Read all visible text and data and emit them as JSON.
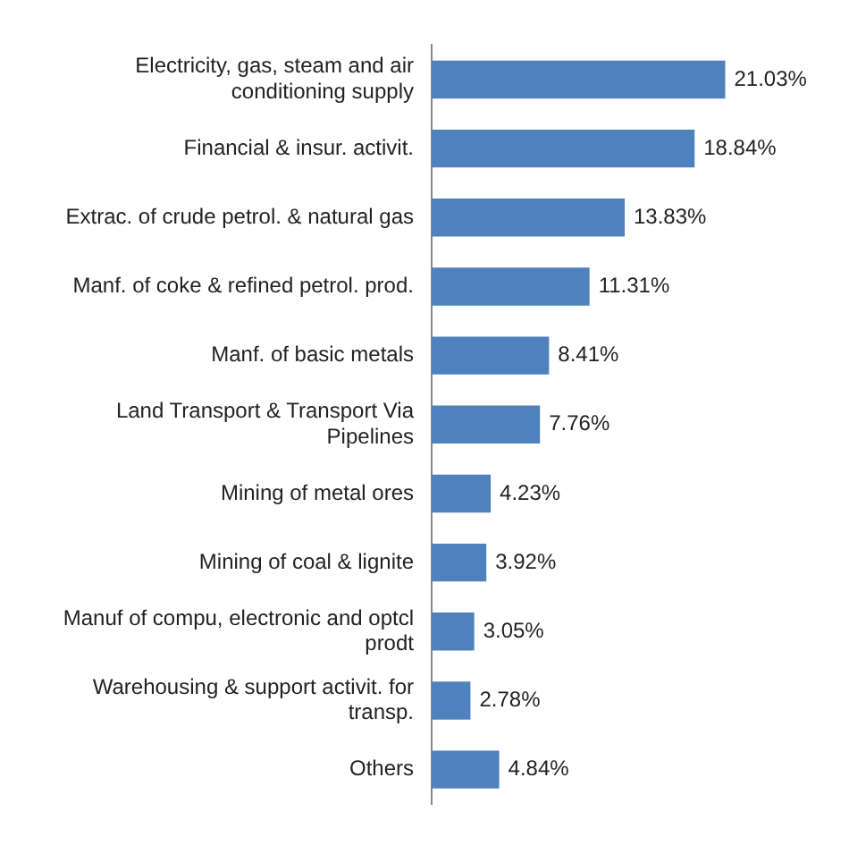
{
  "chart_data": {
    "type": "bar",
    "orientation": "horizontal",
    "categories": [
      "Electricity, gas, steam and air conditioning supply",
      "Financial & insur. activit.",
      "Extrac. of crude petrol. & natural gas",
      "Manf. of coke & refined petrol. prod.",
      "Manf. of basic metals",
      "Land Transport & Transport Via Pipelines",
      "Mining of metal ores",
      "Mining of coal & lignite",
      "Manuf of compu, electronic and optcl prodt",
      "Warehousing & support activit. for transp.",
      "Others"
    ],
    "values": [
      21.03,
      18.84,
      13.83,
      11.31,
      8.41,
      7.76,
      4.23,
      3.92,
      3.05,
      2.78,
      4.84
    ],
    "value_labels": [
      "21.03%",
      "18.84%",
      "13.83%",
      "11.31%",
      "8.41%",
      "7.76%",
      "4.23%",
      "3.92%",
      "3.05%",
      "2.78%",
      "4.84%"
    ],
    "color": "#4f81bd"
  }
}
